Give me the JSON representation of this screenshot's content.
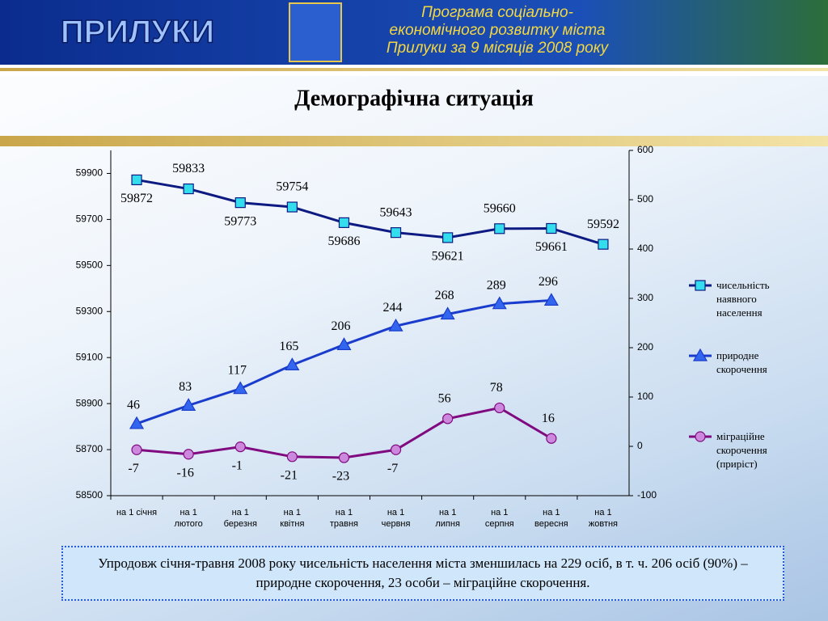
{
  "header": {
    "city": "ПРИЛУКИ",
    "program": [
      "Програма соціально-",
      "економічного розвитку міста",
      "Прилуки за 9 місяців 2008 року"
    ]
  },
  "title": "Демографічна ситуація",
  "chart_data": {
    "type": "line",
    "categories": [
      "на 1 січня",
      "на 1\nлютого",
      "на 1\nберезня",
      "на 1\nквітня",
      "на 1\nтравня",
      "на 1\nчервня",
      "на 1\nлипня",
      "на 1\nсерпня",
      "на 1\nвересня",
      "на 1\nжовтня"
    ],
    "ylim": [
      58500,
      60000
    ],
    "yticks": [
      58500,
      58700,
      58900,
      59100,
      59300,
      59500,
      59700,
      59900
    ],
    "y2lim": [
      -100,
      600
    ],
    "y2ticks": [
      -100,
      0,
      100,
      200,
      300,
      400,
      500,
      600
    ],
    "legend": "right",
    "series": [
      {
        "name": "чисельність\nнаявного\nнаселення",
        "color": "#0c1a82",
        "marker": "square",
        "marker_color": "#33ddee",
        "values": [
          59872,
          59833,
          59773,
          59754,
          59686,
          59643,
          59621,
          59660,
          59661,
          59592
        ]
      },
      {
        "name": "природне\nскорочення",
        "color": "#1a3ccc",
        "marker": "triangle",
        "marker_color": "#3366ee",
        "axis": "y2",
        "values": [
          46,
          83,
          117,
          165,
          206,
          244,
          268,
          289,
          296,
          null
        ]
      },
      {
        "name": "міграційне\nскорочення\n(приріст)",
        "color": "#800a80",
        "marker": "circle",
        "marker_color": "#cc88dd",
        "axis": "y2",
        "values": [
          -7,
          -16,
          -1,
          -21,
          -23,
          -7,
          56,
          78,
          16,
          null
        ]
      }
    ]
  },
  "note": "Упродовж січня-травня 2008 року чисельність населення міста зменшилась на 229 осіб, в т. ч. 206 осіб (90%) – природне скорочення, 23 особи – міграційне скорочення."
}
